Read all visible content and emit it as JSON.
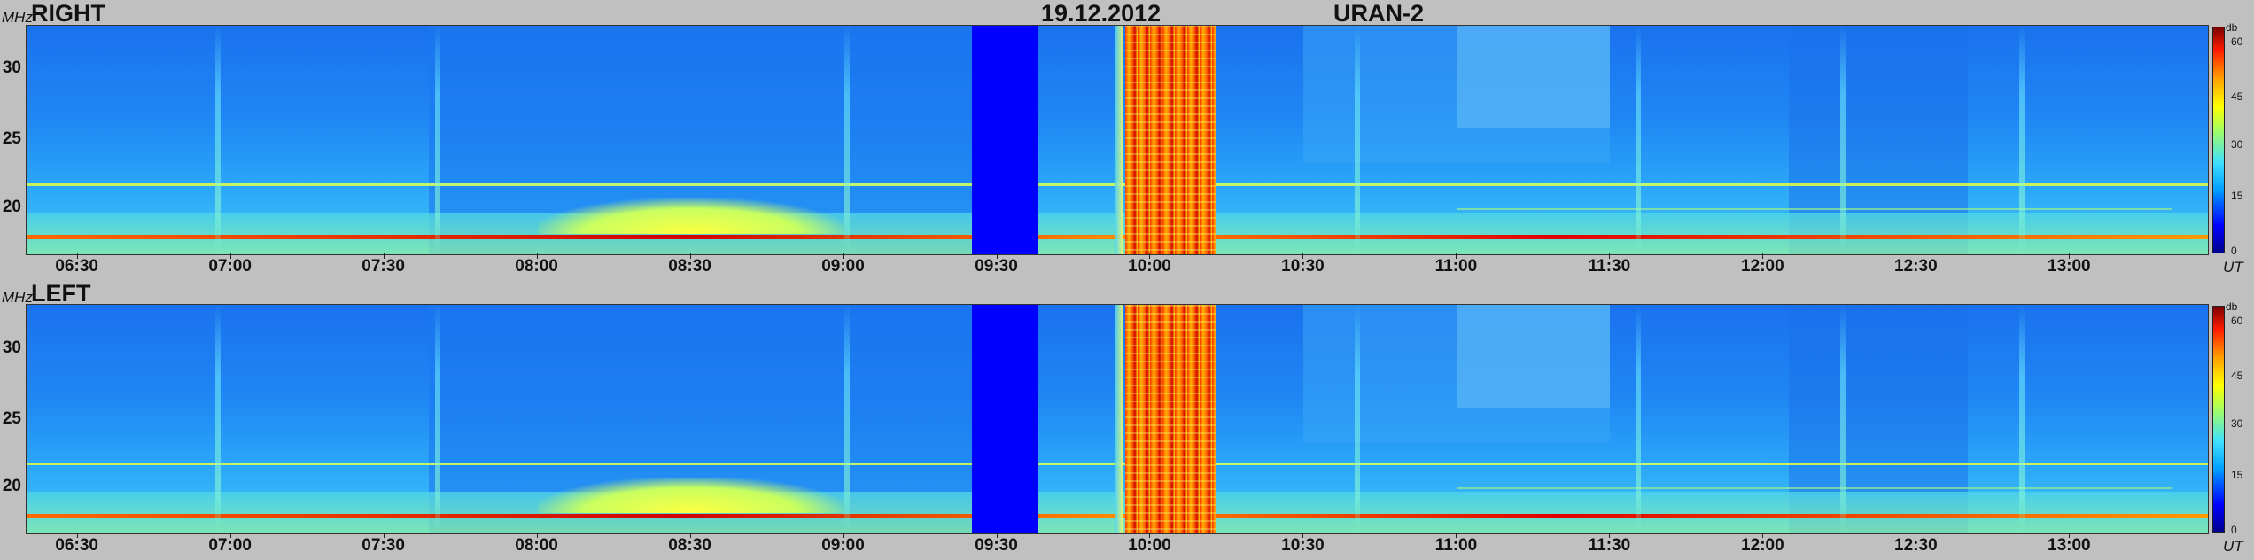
{
  "header": {
    "date": "19.12.2012",
    "instrument": "URAN-2"
  },
  "panels": [
    {
      "label": "RIGHT",
      "freq_unit": "MHz",
      "time_unit": "UT",
      "colorbar_unit": "db"
    },
    {
      "label": "LEFT",
      "freq_unit": "MHz",
      "time_unit": "UT",
      "colorbar_unit": "db"
    }
  ],
  "chart_data": [
    {
      "type": "heatmap",
      "title": "RIGHT",
      "xlabel": "UT",
      "ylabel": "MHz",
      "x_ticks": [
        "06:30",
        "07:00",
        "07:30",
        "08:00",
        "08:30",
        "09:00",
        "09:30",
        "10:00",
        "10:30",
        "11:00",
        "11:30",
        "12:00",
        "12:30",
        "13:00"
      ],
      "y_ticks": [
        "20",
        "25",
        "30"
      ],
      "ylim": [
        16.5,
        33
      ],
      "colorbar": {
        "label": "db",
        "ticks": [
          "0",
          "15",
          "30",
          "45",
          "60"
        ],
        "range": [
          0,
          60
        ]
      },
      "gap": {
        "start": "09:25",
        "end": "09:38"
      },
      "interference": {
        "start": "09:55",
        "end": "10:13"
      }
    },
    {
      "type": "heatmap",
      "title": "LEFT",
      "xlabel": "UT",
      "ylabel": "MHz",
      "x_ticks": [
        "06:30",
        "07:00",
        "07:30",
        "08:00",
        "08:30",
        "09:00",
        "09:30",
        "10:00",
        "10:30",
        "11:00",
        "11:30",
        "12:00",
        "12:30",
        "13:00"
      ],
      "y_ticks": [
        "20",
        "25",
        "30"
      ],
      "ylim": [
        16.5,
        33
      ],
      "colorbar": {
        "label": "db",
        "ticks": [
          "0",
          "15",
          "30",
          "45",
          "60"
        ],
        "range": [
          0,
          60
        ]
      },
      "gap": {
        "start": "09:25",
        "end": "09:38"
      },
      "interference": {
        "start": "09:55",
        "end": "10:13"
      }
    }
  ]
}
